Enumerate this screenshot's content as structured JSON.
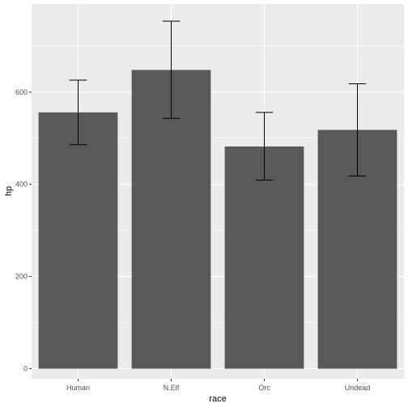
{
  "chart_data": {
    "type": "bar",
    "title": "",
    "xlabel": "race",
    "ylabel": "hp",
    "categories": [
      "Human",
      "N.Elf",
      "Orc",
      "Undead"
    ],
    "values": [
      556,
      648,
      482,
      518
    ],
    "error_low": [
      486,
      543,
      409,
      418
    ],
    "error_high": [
      626,
      754,
      556,
      618
    ],
    "ylim": [
      -22,
      791
    ],
    "yticks": [
      0,
      200,
      400,
      600
    ],
    "ytick_labels": [
      "0",
      "200",
      "400",
      "600"
    ],
    "grid": true,
    "colors": {
      "panel_bg": "#ebebeb",
      "grid_major": "#ffffff",
      "bar_fill": "#595959",
      "errorbar": "#000000",
      "tick": "#333333"
    }
  }
}
